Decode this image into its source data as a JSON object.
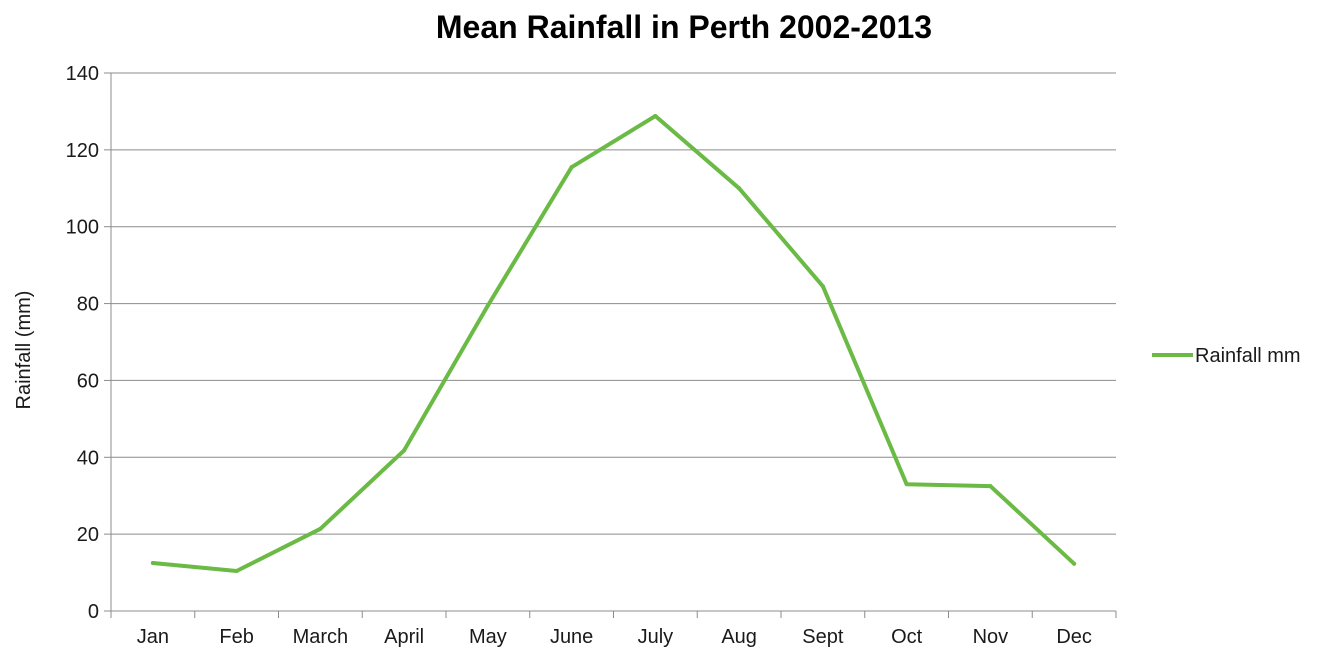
{
  "chart_data": {
    "type": "line",
    "title": "Mean Rainfall in Perth 2002-2013",
    "xlabel": "",
    "ylabel": "Rainfall (mm)",
    "categories": [
      "Jan",
      "Feb",
      "March",
      "April",
      "May",
      "June",
      "July",
      "Aug",
      "Sept",
      "Oct",
      "Nov",
      "Dec"
    ],
    "series": [
      {
        "name": "Rainfall mm",
        "color": "#6aba45",
        "values": [
          12.5,
          10.4,
          21.4,
          41.8,
          79.5,
          115.5,
          128.8,
          110.0,
          84.5,
          33.0,
          32.5,
          12.3
        ]
      }
    ],
    "ylim": [
      0,
      140
    ],
    "yticks": [
      0,
      20,
      40,
      60,
      80,
      100,
      120,
      140
    ],
    "grid": true,
    "legend": "right"
  }
}
